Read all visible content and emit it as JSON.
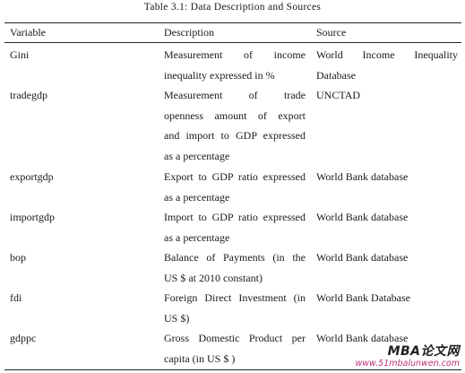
{
  "caption": "Table 3.1: Data Description and Sources",
  "headers": {
    "variable": "Variable",
    "description": "Description",
    "source": "Source"
  },
  "rows": [
    {
      "variable": "Gini",
      "description": [
        "Measurement of income",
        "inequality expressed in %"
      ],
      "source": [
        "World Income Inequality",
        "Database"
      ]
    },
    {
      "variable": "tradegdp",
      "description": [
        "Measurement of trade",
        "openness amount of export",
        "and import to GDP expressed",
        "as a percentage"
      ],
      "source": [
        "UNCTAD"
      ]
    },
    {
      "variable": "exportgdp",
      "description": [
        "Export to GDP ratio expressed",
        "as a percentage"
      ],
      "source": [
        "World Bank database"
      ]
    },
    {
      "variable": "importgdp",
      "description": [
        "Import to GDP ratio expressed",
        "as a percentage"
      ],
      "source": [
        "World Bank database"
      ]
    },
    {
      "variable": "bop",
      "description": [
        "Balance of Payments (in the",
        "US $ at 2010 constant)"
      ],
      "source": [
        "World Bank database"
      ]
    },
    {
      "variable": "fdi",
      "description": [
        "Foreign Direct Investment (in",
        "US $)"
      ],
      "source": [
        "World Bank Database"
      ]
    },
    {
      "variable": "gdppc",
      "description": [
        "Gross Domestic Product per",
        "capita (in US $ )"
      ],
      "source": [
        "World Bank database"
      ]
    }
  ],
  "watermark": {
    "brand": "MBA论文网",
    "url": "www.51mbalunwen.com"
  }
}
